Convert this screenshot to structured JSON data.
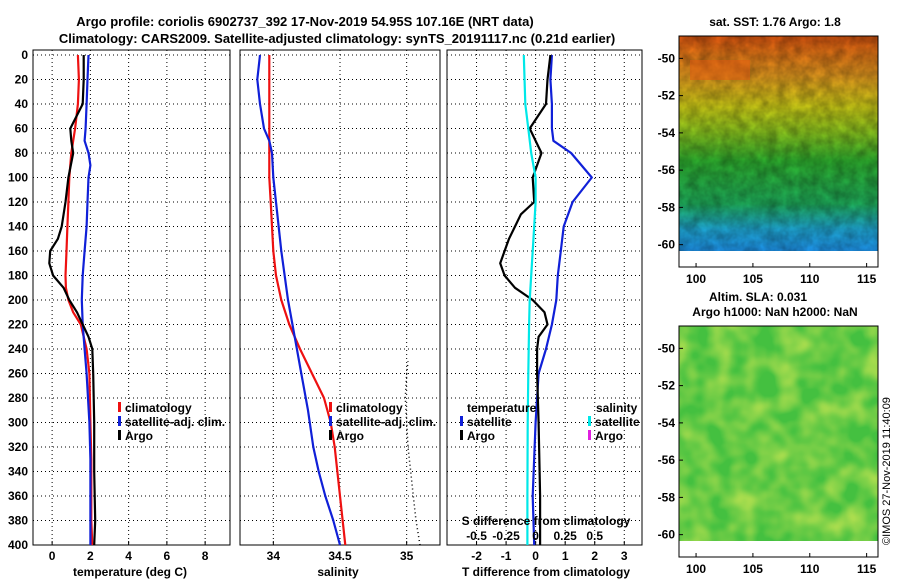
{
  "title": {
    "line1": "Argo profile: coriolis 6902737_392 17-Nov-2019 54.95S 107.16E (NRT data)",
    "line2": "Climatology: CARS2009. Satellite-adjusted climatology: synTS_20191117.nc (0.21d earlier)"
  },
  "colors": {
    "climatology": "#ee1111",
    "satellite": "#1020d8",
    "argo": "#000000",
    "sat_salinity": "#00e8e8",
    "argo_salinity": "#e020e0"
  },
  "chart_data": [
    {
      "type": "line",
      "name": "temperature",
      "xlabel": "temperature (deg C)",
      "ylabel": "",
      "xlim": [
        -1,
        9.3
      ],
      "ylim": [
        400,
        0
      ],
      "xticks": [
        0,
        2,
        4,
        6,
        8
      ],
      "yticks": [
        0,
        20,
        40,
        60,
        80,
        100,
        120,
        140,
        160,
        180,
        200,
        220,
        240,
        260,
        280,
        300,
        320,
        340,
        360,
        380,
        400
      ],
      "grid": true,
      "legend_position": "bottom-right",
      "legend": [
        "climatology",
        "satellite-adj. clim.",
        "Argo"
      ],
      "series": [
        {
          "name": "climatology",
          "x": [
            1.35,
            1.4,
            1.35,
            1.2,
            1.0,
            0.9,
            0.85,
            0.8,
            0.75,
            0.7,
            0.72,
            0.85,
            1.1,
            1.5,
            1.8,
            1.95,
            2.0,
            2.05,
            2.05,
            2.05,
            2.1
          ],
          "y": [
            0,
            20,
            40,
            60,
            80,
            100,
            120,
            140,
            160,
            180,
            190,
            200,
            210,
            220,
            240,
            260,
            300,
            330,
            360,
            380,
            400
          ]
        },
        {
          "name": "satellite-adj. clim.",
          "x": [
            1.9,
            1.85,
            1.8,
            1.75,
            1.7,
            1.9,
            2.0,
            1.9,
            1.85,
            1.8,
            1.7,
            1.6,
            1.55,
            1.6,
            1.7,
            1.8,
            1.95,
            2.0,
            2.0,
            2.0,
            2.0
          ],
          "y": [
            0,
            20,
            40,
            60,
            70,
            80,
            90,
            100,
            120,
            140,
            160,
            180,
            200,
            220,
            240,
            260,
            300,
            330,
            360,
            380,
            400
          ]
        },
        {
          "name": "Argo",
          "x": [
            1.65,
            1.65,
            1.6,
            0.95,
            1.0,
            1.1,
            0.85,
            0.7,
            0.6,
            0.5,
            0.3,
            -0.1,
            -0.15,
            0.05,
            0.6,
            0.9,
            1.3,
            1.6,
            1.9,
            2.1,
            2.15,
            2.2,
            2.2,
            2.25,
            2.2
          ],
          "y": [
            0,
            20,
            40,
            60,
            70,
            80,
            100,
            120,
            130,
            140,
            150,
            160,
            170,
            180,
            190,
            200,
            210,
            220,
            230,
            240,
            260,
            300,
            340,
            380,
            400
          ]
        }
      ]
    },
    {
      "type": "line",
      "name": "salinity",
      "xlabel": "salinity",
      "xlim": [
        33.75,
        35.25
      ],
      "ylim": [
        400,
        0
      ],
      "xticks": [
        34,
        34.5,
        35
      ],
      "grid": true,
      "legend_position": "bottom-right",
      "legend": [
        "climatology",
        "satellite-adj. clim.",
        "Argo"
      ],
      "series": [
        {
          "name": "climatology",
          "x": [
            33.97,
            33.97,
            33.97,
            33.97,
            33.98,
            33.99,
            34.0,
            34.02,
            34.06,
            34.12,
            34.2,
            34.29,
            34.38,
            34.43,
            34.46,
            34.5,
            34.54
          ],
          "y": [
            0,
            40,
            80,
            100,
            120,
            140,
            160,
            180,
            200,
            220,
            240,
            260,
            280,
            300,
            320,
            360,
            400
          ]
        },
        {
          "name": "satellite-adj. clim.",
          "x": [
            33.9,
            33.88,
            33.9,
            33.93,
            33.97,
            33.99,
            34.0,
            34.02,
            34.06,
            34.11,
            34.16,
            34.21,
            34.26,
            34.3,
            34.34,
            34.39,
            34.45,
            34.5
          ],
          "y": [
            0,
            20,
            40,
            60,
            70,
            80,
            100,
            120,
            160,
            200,
            230,
            260,
            290,
            320,
            340,
            360,
            380,
            400
          ]
        },
        {
          "name": "Argo",
          "x": [
            35.1,
            35.07,
            35.05,
            35.03,
            35.01,
            35.0,
            34.99,
            35.0,
            35.01
          ],
          "y": [
            400,
            380,
            360,
            340,
            320,
            300,
            280,
            260,
            250
          ]
        }
      ]
    },
    {
      "type": "line",
      "name": "difference from climatology",
      "xlabel": "T difference from climatology",
      "xlabel_top": "S difference from climatology",
      "xlim": [
        -3,
        3.6
      ],
      "ylim": [
        400,
        0
      ],
      "xticks": [
        -2,
        -1,
        0,
        1,
        2,
        3
      ],
      "xtick_labels_top": [
        "-0.5",
        "-0.25",
        "0",
        "0.25",
        "0.5"
      ],
      "xticks_top": [
        -2,
        -1,
        0,
        1,
        2
      ],
      "grid": true,
      "legend_position": "bottom-right",
      "legend": [
        "temperature",
        "satellite",
        "Argo",
        "salinity",
        "satellite",
        "Argo"
      ],
      "series": [
        {
          "name": "temperature satellite",
          "x": [
            0.55,
            0.5,
            0.55,
            0.55,
            0.6,
            1.2,
            1.9,
            1.25,
            0.95,
            0.85,
            0.75,
            0.7,
            0.55,
            0.35,
            0.1,
            0.0,
            -0.1,
            -0.05
          ],
          "y": [
            0,
            20,
            40,
            60,
            70,
            80,
            100,
            120,
            140,
            160,
            180,
            200,
            220,
            240,
            260,
            300,
            360,
            400
          ]
        },
        {
          "name": "temperature Argo",
          "x": [
            0.5,
            0.4,
            0.35,
            -0.2,
            0.0,
            0.2,
            -0.1,
            -0.05,
            -0.5,
            -0.7,
            -0.9,
            -1.05,
            -1.2,
            -1.05,
            -0.7,
            -0.1,
            0.3,
            0.4,
            0.1,
            0.05,
            0.05,
            0.1,
            0.15,
            0.15
          ],
          "y": [
            0,
            20,
            40,
            60,
            70,
            80,
            100,
            120,
            130,
            140,
            150,
            160,
            170,
            180,
            190,
            200,
            210,
            220,
            230,
            240,
            260,
            300,
            360,
            400
          ]
        },
        {
          "name": "salinity satellite",
          "x": [
            -0.4,
            -0.35,
            -0.25,
            -0.15,
            0.0,
            0.0,
            -0.05,
            -0.1,
            -0.15,
            -0.2,
            -0.22,
            -0.25,
            -0.27,
            -0.28,
            -0.28
          ],
          "y": [
            0,
            40,
            60,
            80,
            100,
            120,
            140,
            160,
            180,
            200,
            220,
            260,
            300,
            360,
            400
          ]
        }
      ]
    },
    {
      "type": "heatmap",
      "name": "sat. SST map",
      "title": "sat. SST: 1.76 Argo: 1.8",
      "xlim": [
        98.5,
        116
      ],
      "ylim": [
        -61.2,
        -48.8
      ],
      "xticks": [
        100,
        105,
        110,
        115
      ],
      "yticks": [
        -50,
        -52,
        -54,
        -56,
        -58,
        -60
      ]
    },
    {
      "type": "heatmap",
      "name": "altimetry map",
      "title_line1": "Altim. SLA: 0.031",
      "title_line2": "Argo h1000: NaN h2000: NaN",
      "xlim": [
        98.5,
        116
      ],
      "ylim": [
        -61.2,
        -48.8
      ],
      "xticks": [
        100,
        105,
        110,
        115
      ],
      "yticks": [
        -50,
        -52,
        -54,
        -56,
        -58,
        -60
      ]
    }
  ],
  "legend_labels": {
    "climatology": "climatology",
    "satellite_adj": "satellite-adj. clim.",
    "argo": "Argo",
    "temperature": "temperature",
    "salinity": "salinity",
    "satellite": "satellite"
  },
  "footer": "©IMOS 27-Nov-2019 11:40:09"
}
